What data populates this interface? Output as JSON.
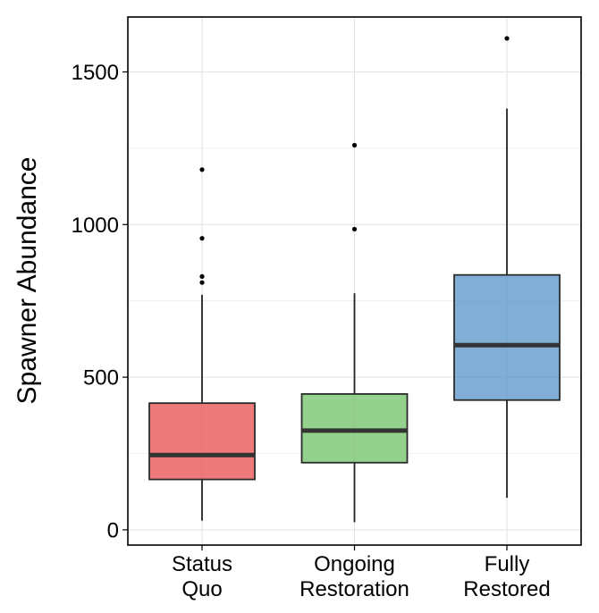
{
  "chart_data": {
    "type": "box",
    "ylabel": "Spawner Abundance",
    "xlabel": "",
    "ylim": [
      -50,
      1680
    ],
    "yticks": [
      0,
      500,
      1000,
      1500
    ],
    "grid": true,
    "categories": [
      {
        "lines": [
          "Status",
          "Quo"
        ]
      },
      {
        "lines": [
          "Ongoing",
          "Restoration"
        ]
      },
      {
        "lines": [
          "Fully",
          "Restored"
        ]
      }
    ],
    "boxes": [
      {
        "name": "Status Quo",
        "color": "#E8474A",
        "whisker_low": 30,
        "q1": 165,
        "median": 245,
        "q3": 415,
        "whisker_high": 770,
        "outliers": [
          810,
          830,
          955,
          1180
        ]
      },
      {
        "name": "Ongoing Restoration",
        "color": "#6BBF5F",
        "whisker_low": 25,
        "q1": 220,
        "median": 325,
        "q3": 445,
        "whisker_high": 775,
        "outliers": [
          985,
          1260
        ]
      },
      {
        "name": "Fully Restored",
        "color": "#4F8FC4",
        "whisker_low": 105,
        "q1": 425,
        "median": 605,
        "q3": 835,
        "whisker_high": 1380,
        "outliers": [
          1610
        ]
      }
    ]
  }
}
